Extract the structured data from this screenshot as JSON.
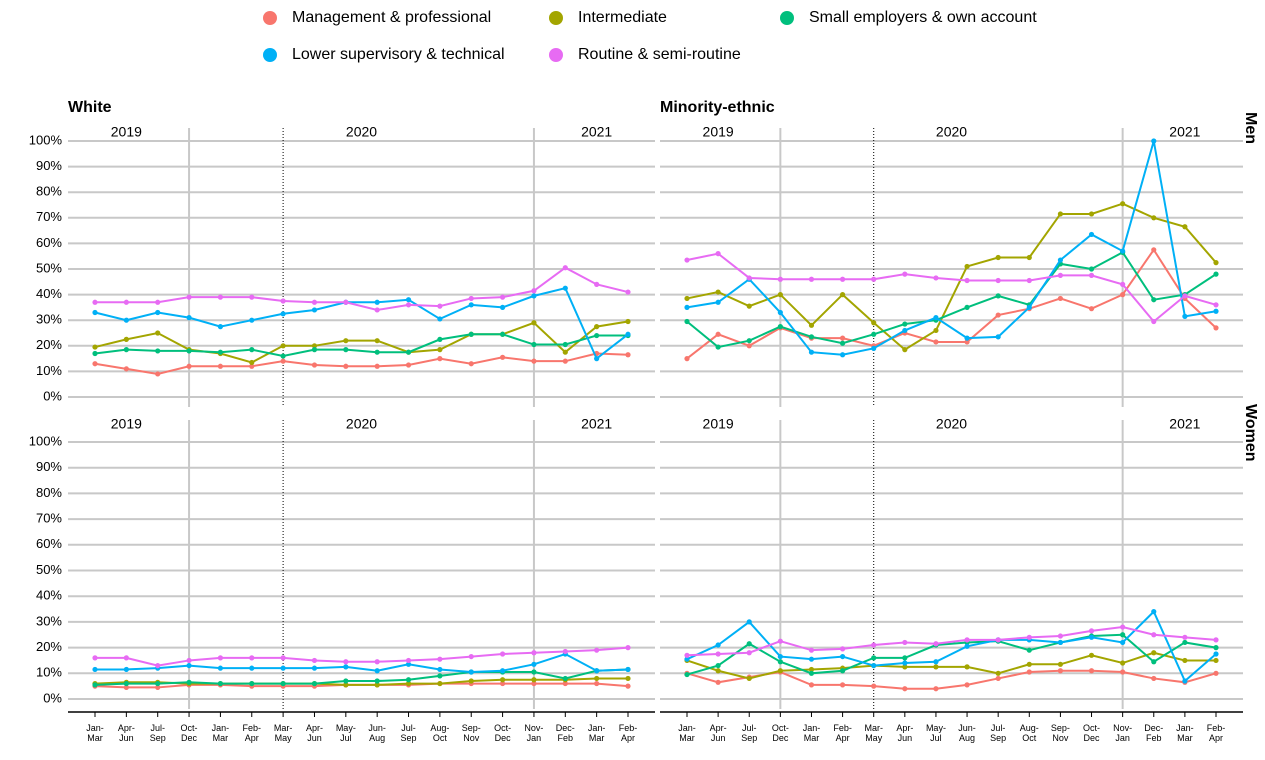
{
  "chart_data": [
    {
      "type": "line",
      "title": "White",
      "show_x_labels": false,
      "show_y_labels": true,
      "year_labels": [
        "2019",
        "2020",
        "2021"
      ],
      "year_dividers": [
        3,
        14
      ],
      "lockdown_marker": 6,
      "categories": [
        "Jan-Mar",
        "Apr-Jun",
        "Jul-Sep",
        "Oct-Dec",
        "Jan-Mar",
        "Feb-Apr",
        "Mar-May",
        "Apr-Jun",
        "May-Jul",
        "Jun-Aug",
        "Jul-Sep",
        "Aug-Oct",
        "Sep-Nov",
        "Oct-Dec",
        "Nov-Jan",
        "Dec-Feb",
        "Jan-Mar",
        "Feb-Apr"
      ],
      "ylim": [
        0,
        100
      ],
      "yticks": [
        {
          "value": 0,
          "label": "0%"
        },
        {
          "value": 10,
          "label": "10%"
        },
        {
          "value": 20,
          "label": "20%"
        },
        {
          "value": 30,
          "label": "30%"
        },
        {
          "value": 40,
          "label": "40%"
        },
        {
          "value": 50,
          "label": "50%"
        },
        {
          "value": 60,
          "label": "60%"
        },
        {
          "value": 70,
          "label": "70%"
        },
        {
          "value": 80,
          "label": "80%"
        },
        {
          "value": 90,
          "label": "90%"
        },
        {
          "value": 100,
          "label": "100%"
        }
      ],
      "grid": true,
      "series": [
        {
          "name": "Management & professional",
          "color": "#F8766D",
          "values": [
            13,
            11,
            9,
            12,
            12,
            12,
            14,
            12.5,
            12,
            12,
            12.5,
            15,
            13,
            15.5,
            14,
            14,
            17,
            16.5
          ]
        },
        {
          "name": "Intermediate",
          "color": "#A3A500",
          "values": [
            19.5,
            22.5,
            25,
            18.5,
            17,
            13.5,
            20,
            20,
            22,
            22,
            17.5,
            18.5,
            24.5,
            24.5,
            29,
            17.5,
            27.5,
            29.5
          ]
        },
        {
          "name": "Small employers & own account",
          "color": "#00BF7D",
          "values": [
            17,
            18.5,
            18,
            18,
            17.5,
            18.5,
            16,
            18.5,
            18.5,
            17.5,
            17.5,
            22.5,
            24.5,
            24.5,
            20.5,
            20.5,
            24,
            24
          ]
        },
        {
          "name": "Lower supervisory & technical",
          "color": "#00B0F6",
          "values": [
            33,
            30,
            33,
            31,
            27.5,
            30,
            32.5,
            34,
            37,
            37,
            38,
            30.5,
            36,
            35,
            39.5,
            42.5,
            15,
            24.5
          ]
        },
        {
          "name": "Routine & semi-routine",
          "color": "#E76BF3",
          "values": [
            37,
            37,
            37,
            39,
            39,
            39,
            37.5,
            37,
            37,
            34,
            36,
            35.5,
            38.5,
            39,
            41.5,
            50.5,
            44,
            41
          ]
        }
      ]
    },
    {
      "type": "line",
      "title": "Minority-ethnic",
      "row_label": "Men",
      "show_x_labels": false,
      "show_y_labels": false,
      "year_labels": [
        "2019",
        "2020",
        "2021"
      ],
      "year_dividers": [
        3,
        14
      ],
      "lockdown_marker": 6,
      "categories": [
        "Jan-Mar",
        "Apr-Jun",
        "Jul-Sep",
        "Oct-Dec",
        "Jan-Mar",
        "Feb-Apr",
        "Mar-May",
        "Apr-Jun",
        "May-Jul",
        "Jun-Aug",
        "Jul-Sep",
        "Aug-Oct",
        "Sep-Nov",
        "Oct-Dec",
        "Nov-Jan",
        "Dec-Feb",
        "Jan-Mar",
        "Feb-Apr"
      ],
      "ylim": [
        0,
        100
      ],
      "yticks": [
        0,
        10,
        20,
        30,
        40,
        50,
        60,
        70,
        80,
        90,
        100
      ],
      "grid": true,
      "series": [
        {
          "name": "Management & professional",
          "color": "#F8766D",
          "values": [
            15,
            24.5,
            20,
            27,
            23,
            23,
            20,
            25,
            21.5,
            21.5,
            32,
            34.5,
            38.5,
            34.5,
            40,
            57.5,
            38.5,
            27
          ]
        },
        {
          "name": "Intermediate",
          "color": "#A3A500",
          "values": [
            38.5,
            41,
            35.5,
            40,
            28,
            40,
            29,
            18.5,
            26,
            51,
            54.5,
            54.5,
            71.5,
            71.5,
            75.5,
            70,
            66.5,
            52.5
          ]
        },
        {
          "name": "Small employers & own account",
          "color": "#00BF7D",
          "values": [
            29.5,
            19.5,
            22,
            27.5,
            23.5,
            21,
            24.5,
            28.5,
            30,
            35,
            39.5,
            36,
            52,
            50,
            56.5,
            38,
            40,
            48
          ]
        },
        {
          "name": "Lower supervisory & technical",
          "color": "#00B0F6",
          "values": [
            35,
            37,
            46,
            33,
            17.5,
            16.5,
            19,
            26,
            31,
            23,
            23.5,
            35,
            53.5,
            63.5,
            57,
            100,
            31.5,
            33.5
          ]
        },
        {
          "name": "Routine & semi-routine",
          "color": "#E76BF3",
          "values": [
            53.5,
            56,
            46.5,
            46,
            46,
            46,
            46,
            48,
            46.5,
            45.5,
            45.5,
            45.5,
            47.5,
            47.5,
            44,
            29.5,
            39.5,
            36
          ]
        }
      ]
    },
    {
      "type": "line",
      "show_x_labels": true,
      "show_y_labels": true,
      "year_labels": [
        "2019",
        "2020",
        "2021"
      ],
      "year_dividers": [
        3,
        14
      ],
      "lockdown_marker": 6,
      "categories": [
        "Jan-Mar",
        "Apr-Jun",
        "Jul-Sep",
        "Oct-Dec",
        "Jan-Mar",
        "Feb-Apr",
        "Mar-May",
        "Apr-Jun",
        "May-Jul",
        "Jun-Aug",
        "Jul-Sep",
        "Aug-Oct",
        "Sep-Nov",
        "Oct-Dec",
        "Nov-Jan",
        "Dec-Feb",
        "Jan-Mar",
        "Feb-Apr"
      ],
      "ylim": [
        0,
        100
      ],
      "yticks": [
        {
          "value": 0,
          "label": "0%"
        },
        {
          "value": 10,
          "label": "10%"
        },
        {
          "value": 20,
          "label": "20%"
        },
        {
          "value": 30,
          "label": "30%"
        },
        {
          "value": 40,
          "label": "40%"
        },
        {
          "value": 50,
          "label": "50%"
        },
        {
          "value": 60,
          "label": "60%"
        },
        {
          "value": 70,
          "label": "70%"
        },
        {
          "value": 80,
          "label": "80%"
        },
        {
          "value": 90,
          "label": "90%"
        },
        {
          "value": 100,
          "label": "100%"
        }
      ],
      "grid": true,
      "series": [
        {
          "name": "Management & professional",
          "color": "#F8766D",
          "values": [
            5,
            4.5,
            4.5,
            5.5,
            5.5,
            5,
            5,
            5,
            5.5,
            5.5,
            5.5,
            6,
            6,
            6,
            6,
            6,
            6,
            5
          ]
        },
        {
          "name": "Intermediate",
          "color": "#A3A500",
          "values": [
            6,
            6.5,
            6.5,
            6,
            6,
            6,
            6,
            6,
            5.5,
            5.5,
            6,
            6,
            7,
            7.5,
            7.5,
            7.5,
            8,
            8
          ]
        },
        {
          "name": "Small employers & own account",
          "color": "#00BF7D",
          "values": [
            5.5,
            6,
            6,
            6.5,
            6,
            6,
            6,
            6,
            7,
            7,
            7.5,
            9,
            10.5,
            10.5,
            10.5,
            8,
            11,
            11.5
          ]
        },
        {
          "name": "Lower supervisory & technical",
          "color": "#00B0F6",
          "values": [
            11.5,
            11.5,
            12,
            13,
            12,
            12,
            12,
            12,
            12.5,
            11,
            13.5,
            11.5,
            10.5,
            11,
            13.5,
            17.5,
            11,
            11.5
          ]
        },
        {
          "name": "Routine & semi-routine",
          "color": "#E76BF3",
          "values": [
            16,
            16,
            13,
            15,
            16,
            16,
            16,
            15,
            14.5,
            14.5,
            15,
            15.5,
            16.5,
            17.5,
            18,
            18.5,
            19,
            20
          ]
        }
      ]
    },
    {
      "type": "line",
      "row_label": "Women",
      "show_x_labels": true,
      "show_y_labels": false,
      "year_labels": [
        "2019",
        "2020",
        "2021"
      ],
      "year_dividers": [
        3,
        14
      ],
      "lockdown_marker": 6,
      "categories": [
        "Jan-Mar",
        "Apr-Jun",
        "Jul-Sep",
        "Oct-Dec",
        "Jan-Mar",
        "Feb-Apr",
        "Mar-May",
        "Apr-Jun",
        "May-Jul",
        "Jun-Aug",
        "Jul-Sep",
        "Aug-Oct",
        "Sep-Nov",
        "Oct-Dec",
        "Nov-Jan",
        "Dec-Feb",
        "Jan-Mar",
        "Feb-Apr"
      ],
      "ylim": [
        0,
        100
      ],
      "yticks": [
        0,
        10,
        20,
        30,
        40,
        50,
        60,
        70,
        80,
        90,
        100
      ],
      "grid": true,
      "series": [
        {
          "name": "Management & professional",
          "color": "#F8766D",
          "values": [
            10,
            6.5,
            8.5,
            10.5,
            5.5,
            5.5,
            5,
            4,
            4,
            5.5,
            8,
            10.5,
            11,
            11,
            10.5,
            8,
            6.5,
            10
          ]
        },
        {
          "name": "Intermediate",
          "color": "#A3A500",
          "values": [
            15,
            11,
            8,
            11,
            11.5,
            12,
            13,
            12.5,
            12.5,
            12.5,
            10,
            13.5,
            13.5,
            17,
            14,
            18,
            15,
            15
          ]
        },
        {
          "name": "Small employers & own account",
          "color": "#00BF7D",
          "values": [
            9.5,
            13,
            21.5,
            14.5,
            10,
            11,
            16,
            16,
            21,
            22,
            22.5,
            19,
            22,
            24.5,
            25,
            14.5,
            22,
            20
          ]
        },
        {
          "name": "Lower supervisory & technical",
          "color": "#00B0F6",
          "values": [
            15.5,
            21,
            30,
            16.5,
            15.5,
            16.5,
            13,
            14,
            14.5,
            20.5,
            23,
            23,
            22,
            24,
            22,
            34,
            7,
            17.5
          ]
        },
        {
          "name": "Routine & semi-routine",
          "color": "#E76BF3",
          "values": [
            17,
            17.5,
            18,
            22.5,
            19,
            19.5,
            21,
            22,
            21.5,
            23,
            23,
            24,
            24.5,
            26.5,
            28,
            25,
            24,
            23
          ]
        }
      ]
    }
  ]
}
